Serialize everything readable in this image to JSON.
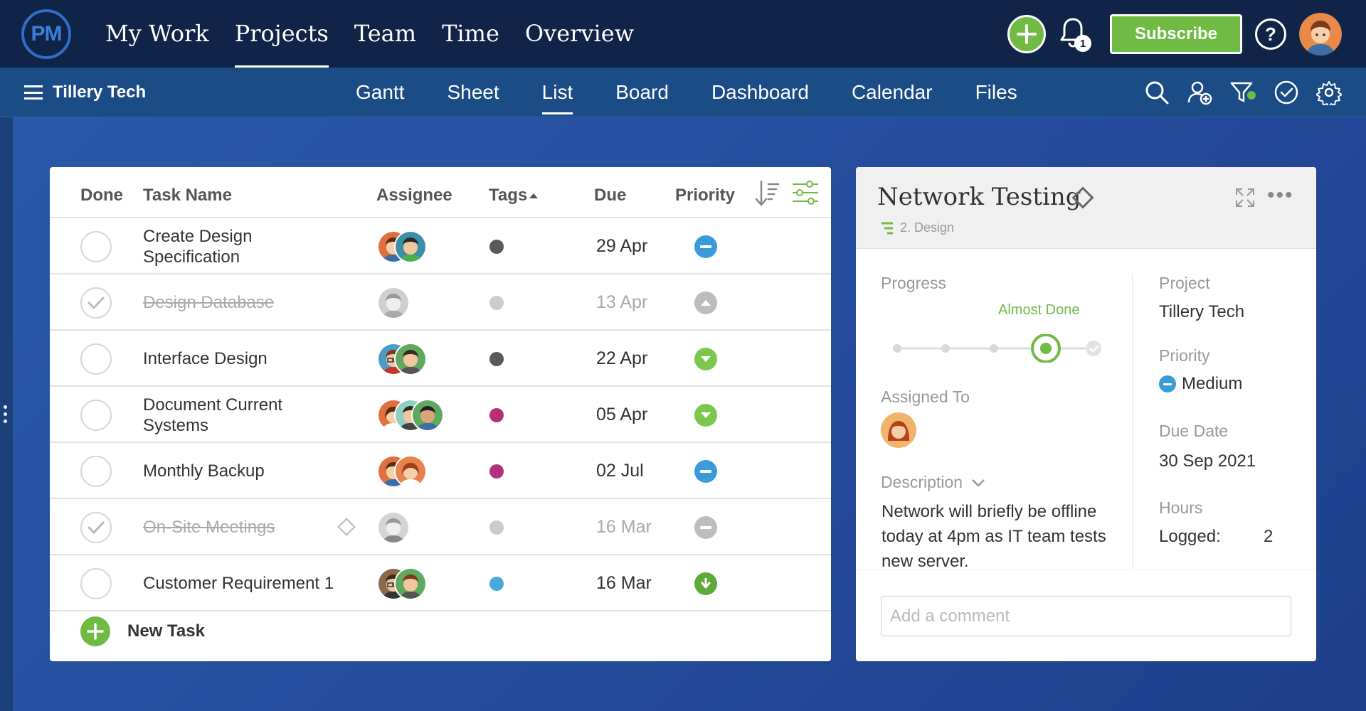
{
  "app": {
    "logo_text": "PM",
    "nav": [
      "My Work",
      "Projects",
      "Team",
      "Time",
      "Overview"
    ],
    "active_nav": "Projects",
    "notifications_count": "1",
    "subscribe_label": "Subscribe",
    "help_label": "?"
  },
  "subnav": {
    "workspace": "Tillery Tech",
    "tabs": [
      "Gantt",
      "Sheet",
      "List",
      "Board",
      "Dashboard",
      "Calendar",
      "Files"
    ],
    "active_tab": "List",
    "icons": [
      "search-icon",
      "add-user-icon",
      "filter-icon",
      "checkmark-icon",
      "settings-icon"
    ]
  },
  "list": {
    "headers": {
      "done": "Done",
      "task_name": "Task Name",
      "assignee": "Assignee",
      "tags": "Tags",
      "due": "Due",
      "priority": "Priority"
    },
    "tasks": [
      {
        "name": "Create Design Specification",
        "done": false,
        "tag_color": "#5a5a5a",
        "due": "29 Apr",
        "priority": "medium"
      },
      {
        "name": "Design Database",
        "done": true,
        "tag_color": "#cccccc",
        "due": "13 Apr",
        "priority": "high"
      },
      {
        "name": "Interface Design",
        "done": false,
        "tag_color": "#5a5a5a",
        "due": "22 Apr",
        "priority": "low"
      },
      {
        "name": "Document Current Systems",
        "done": false,
        "tag_color": "#b5307a",
        "due": "05 Apr",
        "priority": "low"
      },
      {
        "name": "Monthly Backup",
        "done": false,
        "tag_color": "#b5307a",
        "due": "02 Jul",
        "priority": "medium"
      },
      {
        "name": "On-Site Meetings",
        "done": true,
        "tag_color": "#cccccc",
        "due": "16 Mar",
        "priority": "medium"
      },
      {
        "name": "Customer Requirement 1",
        "done": false,
        "tag_color": "#4aa8dc",
        "due": "16 Mar",
        "priority": "very-low"
      }
    ],
    "new_task_label": "New Task"
  },
  "detail": {
    "title": "Network Testing",
    "parent": "2. Design",
    "progress_label": "Progress",
    "progress_status": "Almost Done",
    "assigned_label": "Assigned To",
    "description_label": "Description",
    "description": "Network will briefly be offline today at 4pm as IT team tests new server.",
    "project_label": "Project",
    "project": "Tillery Tech",
    "priority_label": "Priority",
    "priority": "Medium",
    "due_label": "Due Date",
    "due": "30 Sep 2021",
    "hours_label": "Hours",
    "logged_label": "Logged:",
    "logged_value": "2",
    "comment_placeholder": "Add a comment"
  },
  "colors": {
    "green": "#6fbb44",
    "navy": "#0f2447",
    "subnav": "#1b4c86",
    "priority_medium": "#3b9ad9",
    "priority_low": "#7cc84e",
    "priority_high": "#bdbdbd"
  }
}
